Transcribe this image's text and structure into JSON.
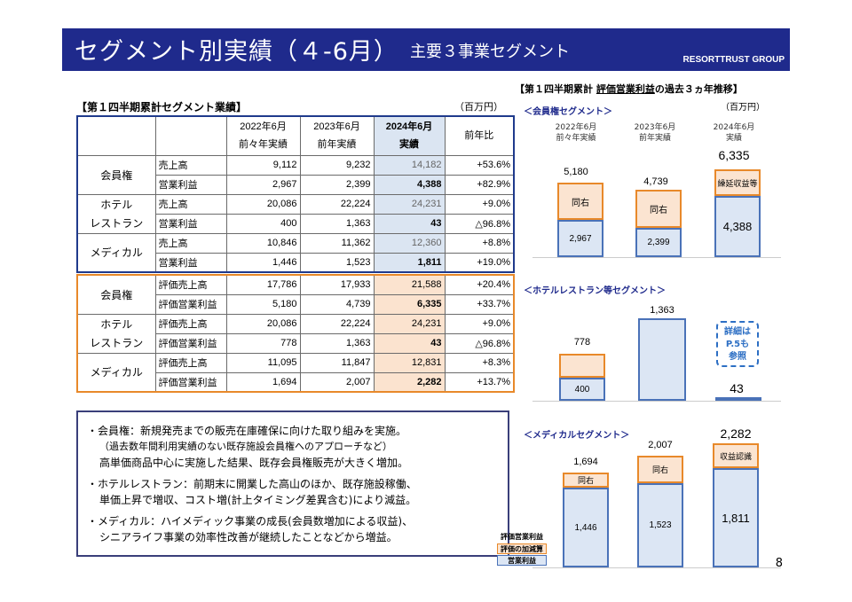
{
  "header": {
    "title": "セグメント別実績（４-6月）",
    "subtitle": "主要３事業セグメント",
    "group": "RESORTTRUST GROUP"
  },
  "table_title": "【第１四半期累計セグメント業績】",
  "unit": "（百万円）",
  "columns": {
    "c2022a": "2022年6月",
    "c2022b": "前々年実績",
    "c2023a": "2023年6月",
    "c2023b": "前年実績",
    "c2024a": "2024年6月",
    "c2024b": "実績",
    "yoy": "前年比"
  },
  "table1": {
    "membership": {
      "name": "会員権",
      "r1": {
        "item": "売上高",
        "v1": "9,112",
        "v2": "9,232",
        "v3": "14,182",
        "yoy": "+53.6%"
      },
      "r2": {
        "item": "営業利益",
        "v1": "2,967",
        "v2": "2,399",
        "v3": "4,388",
        "yoy": "+82.9%"
      }
    },
    "hotel": {
      "name1": "ホテル",
      "name2": "レストラン",
      "r1": {
        "item": "売上高",
        "v1": "20,086",
        "v2": "22,224",
        "v3": "24,231",
        "yoy": "+9.0%"
      },
      "r2": {
        "item": "営業利益",
        "v1": "400",
        "v2": "1,363",
        "v3": "43",
        "yoy": "△96.8%"
      }
    },
    "medical": {
      "name": "メディカル",
      "r1": {
        "item": "売上高",
        "v1": "10,846",
        "v2": "11,362",
        "v3": "12,360",
        "yoy": "+8.8%"
      },
      "r2": {
        "item": "営業利益",
        "v1": "1,446",
        "v2": "1,523",
        "v3": "1,811",
        "yoy": "+19.0%"
      }
    }
  },
  "table2": {
    "membership": {
      "name": "会員権",
      "r1": {
        "item": "評価売上高",
        "v1": "17,786",
        "v2": "17,933",
        "v3": "21,588",
        "yoy": "+20.4%"
      },
      "r2": {
        "item": "評価営業利益",
        "v1": "5,180",
        "v2": "4,739",
        "v3": "6,335",
        "yoy": "+33.7%"
      }
    },
    "hotel": {
      "name1": "ホテル",
      "name2": "レストラン",
      "r1": {
        "item": "評価売上高",
        "v1": "20,086",
        "v2": "22,224",
        "v3": "24,231",
        "yoy": "+9.0%"
      },
      "r2": {
        "item": "評価営業利益",
        "v1": "778",
        "v2": "1,363",
        "v3": "43",
        "yoy": "△96.8%"
      }
    },
    "medical": {
      "name": "メディカル",
      "r1": {
        "item": "評価売上高",
        "v1": "11,095",
        "v2": "11,847",
        "v3": "12,831",
        "yoy": "+8.3%"
      },
      "r2": {
        "item": "評価営業利益",
        "v1": "1,694",
        "v2": "2,007",
        "v3": "2,282",
        "yoy": "+13.7%"
      }
    }
  },
  "notes": {
    "l1": "・会員権：新規発売までの販売在庫確保に向けた取り組みを実施。",
    "l2": "（過去数年間利用実績のない既存施設会員権へのアプローチなど）",
    "l3": "高単価商品中心に実施した結果、既存会員権販売が大きく増加。",
    "l4": "・ホテルレストラン：前期末に開業した高山のほか、既存施設稼働、",
    "l5": "単価上昇で増収、コスト増(計上タイミング差異含む)により減益。",
    "l6": "・メディカル：ハイメディック事業の成長(会員数増加による収益)、",
    "l7": "シニアライフ事業の効率性改善が継続したことなどから増益。"
  },
  "right_title_a": "【第１四半期累計 ",
  "right_title_b": "評価営業利益",
  "right_title_c": "の過去３ヵ年推移】",
  "right_unit": "（百万円）",
  "chart_data": [
    {
      "type": "bar",
      "title": "＜会員権セグメント＞",
      "categories": [
        "2022年6月 前々年実績",
        "2023年6月 前年実績",
        "2024年6月 実績"
      ],
      "series": [
        {
          "name": "営業利益",
          "values": [
            2967,
            2399,
            4388
          ]
        },
        {
          "name": "評価の加減算",
          "values": [
            2213,
            2340,
            1947
          ]
        }
      ],
      "totals": [
        5180,
        4739,
        6335
      ],
      "labels": [
        "2,967",
        "2,399",
        "4,388"
      ],
      "total_labels": [
        "5,180",
        "4,739",
        "6,335"
      ],
      "adj_labels": [
        "同右",
        "同右",
        "繰延収益等"
      ]
    },
    {
      "type": "bar",
      "title": "＜ホテルレストラン等セグメント＞",
      "categories": [
        "2022年6月",
        "2023年6月",
        "2024年6月"
      ],
      "series": [
        {
          "name": "営業利益",
          "values": [
            400,
            1363,
            43
          ]
        },
        {
          "name": "評価の加減算",
          "values": [
            378,
            0,
            0
          ]
        }
      ],
      "totals": [
        778,
        1363,
        43
      ],
      "labels": [
        "400"
      ],
      "total_labels": [
        "778",
        "1,363",
        "43"
      ],
      "callout": "詳細はP.5も参照"
    },
    {
      "type": "bar",
      "title": "＜メディカルセグメント＞",
      "categories": [
        "2022年6月",
        "2023年6月",
        "2024年6月"
      ],
      "series": [
        {
          "name": "営業利益",
          "values": [
            1446,
            1523,
            1811
          ]
        },
        {
          "name": "評価の加減算",
          "values": [
            248,
            484,
            471
          ]
        }
      ],
      "totals": [
        1694,
        2007,
        2282
      ],
      "labels": [
        "1,446",
        "1,523",
        "1,811"
      ],
      "total_labels": [
        "1,694",
        "2,007",
        "2,282"
      ],
      "adj_labels": [
        "同右",
        "同右",
        "収益認識"
      ]
    }
  ],
  "legend": {
    "a": "評価営業利益",
    "b": "評価の加減算",
    "c": "営業利益"
  },
  "callout": {
    "l1": "詳細は",
    "l2": "P.5も",
    "l3": "参照"
  },
  "page": "8"
}
